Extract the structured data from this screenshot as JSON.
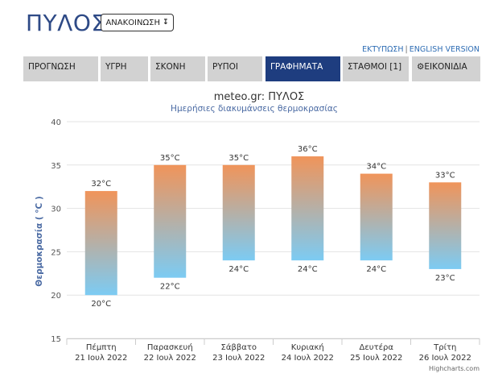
{
  "header": {
    "city": "ΠΥΛΟΣ",
    "announce_label": "ΑΝΑΚΟΙΝΩΣΗ",
    "announce_icon": "arrow-down-icon",
    "print_link": "ΕΚΤΥΠΩΣΗ",
    "link_separator": "|",
    "english_link": "ENGLISH VERSION"
  },
  "nav": {
    "tabs": [
      {
        "label": "ΠΡΟΓΝΩΣΗ",
        "active": false
      },
      {
        "label": "ΥΓΡΗ",
        "active": false
      },
      {
        "label": "ΣΚΟΝΗ",
        "active": false
      },
      {
        "label": "ΡΥΠΟΙ",
        "active": false
      },
      {
        "label": "ΓΡΑΦΗΜΑΤΑ",
        "active": true
      },
      {
        "label": "ΣΤΑΘΜΟΙ [1]",
        "active": false
      },
      {
        "label": "ΕΙΚΟΝΙΔΙΑ",
        "active": false,
        "icon": "gear-icon"
      }
    ]
  },
  "chart_data": {
    "type": "bar",
    "title": "meteo.gr: ΠΥΛΟΣ",
    "subtitle": "Ημερήσιες διακυμάνσεις θερμοκρασίας",
    "ylabel": "Θερμοκρασία ( °C )",
    "xlabel": "",
    "ylim": [
      15,
      40
    ],
    "yticks": [
      15,
      20,
      25,
      30,
      35,
      40
    ],
    "grid": true,
    "categories": [
      [
        "Πέμπτη",
        "21 Ιουλ 2022"
      ],
      [
        "Παρασκευή",
        "22 Ιουλ 2022"
      ],
      [
        "Σάββατο",
        "23 Ιουλ 2022"
      ],
      [
        "Κυριακή",
        "24 Ιουλ 2022"
      ],
      [
        "Δευτέρα",
        "25 Ιουλ 2022"
      ],
      [
        "Τρίτη",
        "26 Ιουλ 2022"
      ]
    ],
    "low": [
      20,
      22,
      24,
      24,
      24,
      23
    ],
    "high": [
      32,
      35,
      35,
      36,
      34,
      33
    ],
    "unit_suffix": "°C",
    "colors": {
      "high": "#f0945a",
      "low": "#7ccbf3",
      "label": "#333333",
      "axis_label": "#4a6aa3"
    },
    "credits": "Highcharts.com"
  }
}
